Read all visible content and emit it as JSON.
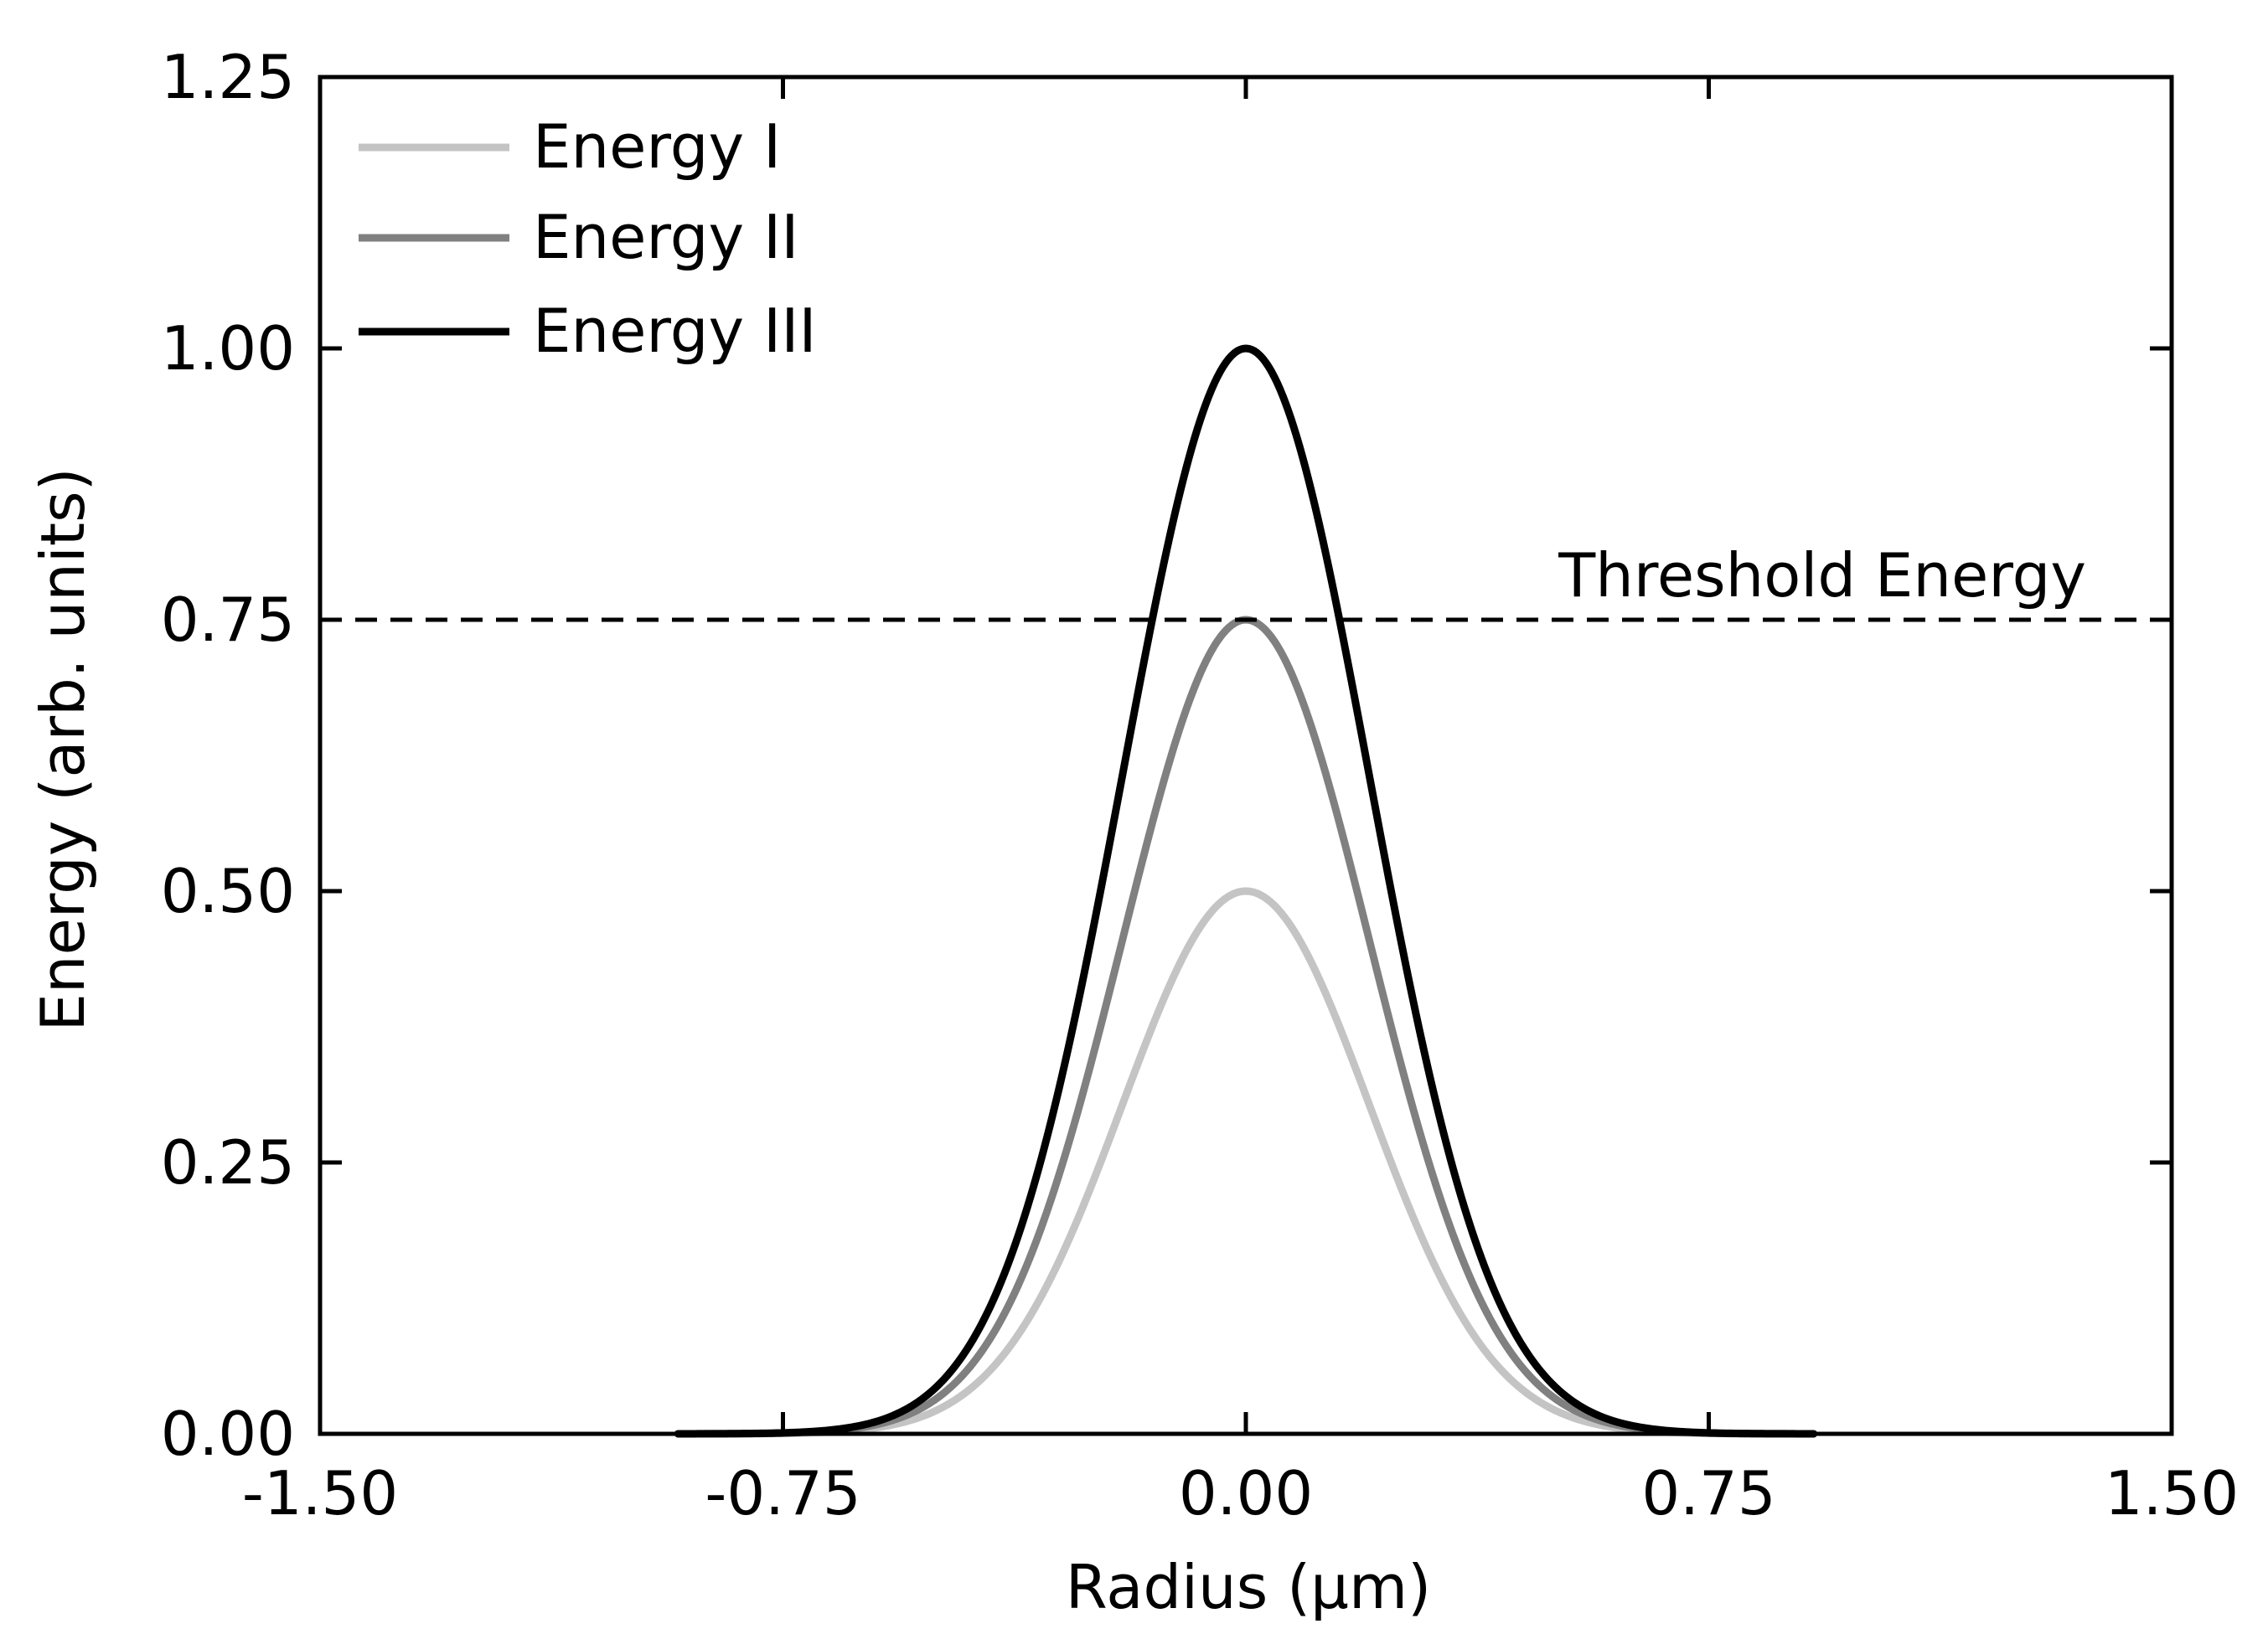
{
  "chart_data": {
    "type": "line",
    "title": "",
    "xlabel": "Radius (μm)",
    "ylabel": "Energy (arb. units)",
    "xlim": [
      -1.5,
      1.5
    ],
    "ylim": [
      0,
      1.25
    ],
    "x_ticks": [
      -1.5,
      -0.75,
      0,
      0.75,
      1.5
    ],
    "x_tick_labels": [
      "-1.50",
      "-0.75",
      "0.00",
      "0.75",
      "1.50"
    ],
    "y_ticks": [
      0,
      0.25,
      0.5,
      0.75,
      1.0,
      1.25
    ],
    "y_tick_labels": [
      "0.00",
      "0.25",
      "0.50",
      "0.75",
      "1.00",
      "1.25"
    ],
    "grid": false,
    "legend_position": "top-left",
    "x_range_of_curves": [
      -0.92,
      0.92
    ],
    "gaussian_width_um": 0.2,
    "series": [
      {
        "name": "Energy I",
        "peak": 0.5,
        "color": "#c4c4c4"
      },
      {
        "name": "Energy II",
        "peak": 0.75,
        "color": "#808080"
      },
      {
        "name": "Energy III",
        "peak": 1.0,
        "color": "#000000"
      }
    ],
    "threshold": {
      "label": "Threshold Energy",
      "value": 0.75,
      "style": "dashed",
      "color": "#000000"
    }
  }
}
